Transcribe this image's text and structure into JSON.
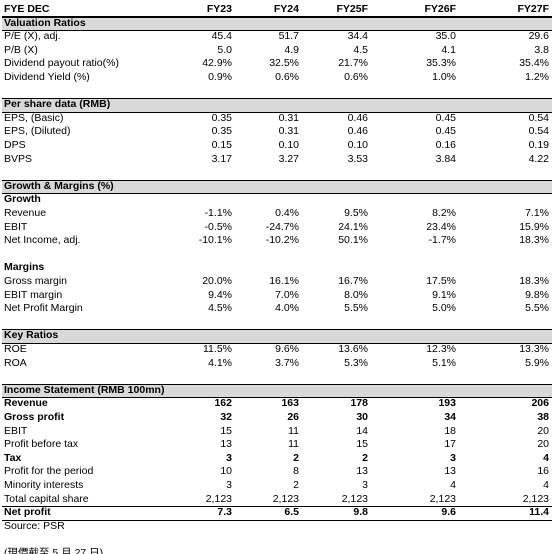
{
  "header": {
    "label": "FYE DEC",
    "columns": [
      "FY23",
      "FY24",
      "FY25F",
      "FY26F",
      "FY27F"
    ]
  },
  "sections": [
    {
      "title": "Valuation Ratios",
      "groups": [
        {
          "rows": [
            {
              "label": "P/E (X), adj.",
              "values": [
                "45.4",
                "51.7",
                "34.4",
                "35.0",
                "29.6"
              ]
            },
            {
              "label": "P/B (X)",
              "values": [
                "5.0",
                "4.9",
                "4.5",
                "4.1",
                "3.8"
              ]
            },
            {
              "label": "Dividend payout ratio(%)",
              "values": [
                "42.9%",
                "32.5%",
                "21.7%",
                "35.3%",
                "35.4%"
              ]
            },
            {
              "label": "Dividend Yield (%)",
              "values": [
                "0.9%",
                "0.6%",
                "0.6%",
                "1.0%",
                "1.2%"
              ]
            }
          ]
        }
      ]
    },
    {
      "title": "Per share data (RMB)",
      "groups": [
        {
          "rows": [
            {
              "label": "EPS, (Basic)",
              "values": [
                "0.35",
                "0.31",
                "0.46",
                "0.45",
                "0.54"
              ]
            },
            {
              "label": "EPS, (Diluted)",
              "values": [
                "0.35",
                "0.31",
                "0.46",
                "0.45",
                "0.54"
              ]
            },
            {
              "label": "DPS",
              "values": [
                "0.15",
                "0.10",
                "0.10",
                "0.16",
                "0.19"
              ]
            },
            {
              "label": "BVPS",
              "values": [
                "3.17",
                "3.27",
                "3.53",
                "3.84",
                "4.22"
              ]
            }
          ]
        }
      ]
    },
    {
      "title": "Growth & Margins (%)",
      "groups": [
        {
          "subtitle": "Growth",
          "rows": [
            {
              "label": "Revenue",
              "values": [
                "-1.1%",
                "0.4%",
                "9.5%",
                "8.2%",
                "7.1%"
              ]
            },
            {
              "label": "EBIT",
              "values": [
                "-0.5%",
                "-24.7%",
                "24.1%",
                "23.4%",
                "15.9%"
              ]
            },
            {
              "label": "Net Income, adj.",
              "values": [
                "-10.1%",
                "-10.2%",
                "50.1%",
                "-1.7%",
                "18.3%"
              ]
            }
          ]
        },
        {
          "subtitle": "Margins",
          "rows": [
            {
              "label": "Gross margin",
              "values": [
                "20.0%",
                "16.1%",
                "16.7%",
                "17.5%",
                "18.3%"
              ]
            },
            {
              "label": "EBIT margin",
              "values": [
                "9.4%",
                "7.0%",
                "8.0%",
                "9.1%",
                "9.8%"
              ]
            },
            {
              "label": "Net Profit Margin",
              "values": [
                "4.5%",
                "4.0%",
                "5.5%",
                "5.0%",
                "5.5%"
              ]
            }
          ]
        }
      ]
    },
    {
      "title": "Key Ratios",
      "groups": [
        {
          "rows": [
            {
              "label": "ROE",
              "values": [
                "11.5%",
                "9.6%",
                "13.6%",
                "12.3%",
                "13.3%"
              ]
            },
            {
              "label": "ROA",
              "values": [
                "4.1%",
                "3.7%",
                "5.3%",
                "5.1%",
                "5.9%"
              ]
            }
          ]
        }
      ]
    },
    {
      "title": "Income Statement (RMB 100mn)",
      "groups": [
        {
          "rows": [
            {
              "label": "Revenue",
              "values": [
                "162",
                "163",
                "178",
                "193",
                "206"
              ],
              "bold": true
            },
            {
              "label": "Gross profit",
              "values": [
                "32",
                "26",
                "30",
                "34",
                "38"
              ],
              "bold": true
            },
            {
              "label": "EBIT",
              "values": [
                "15",
                "11",
                "14",
                "18",
                "20"
              ]
            },
            {
              "label": "Profit before tax",
              "values": [
                "13",
                "11",
                "15",
                "17",
                "20"
              ]
            },
            {
              "label": "Tax",
              "values": [
                "3",
                "2",
                "2",
                "3",
                "4"
              ],
              "bold": true
            },
            {
              "label": "Profit for the period",
              "values": [
                "10",
                "8",
                "13",
                "13",
                "16"
              ]
            },
            {
              "label": "Minority interests",
              "values": [
                "3",
                "2",
                "3",
                "4",
                "4"
              ]
            },
            {
              "label": "Total capital share",
              "values": [
                "2,123",
                "2,123",
                "2,123",
                "2,123",
                "2,123"
              ]
            },
            {
              "label": "Net profit",
              "values": [
                "7.3",
                "6.5",
                "9.8",
                "9.6",
                "11.4"
              ],
              "bold": true
            }
          ]
        }
      ]
    }
  ],
  "source": "Source: PSR",
  "note": "(現價截至 5 月 27 日)"
}
